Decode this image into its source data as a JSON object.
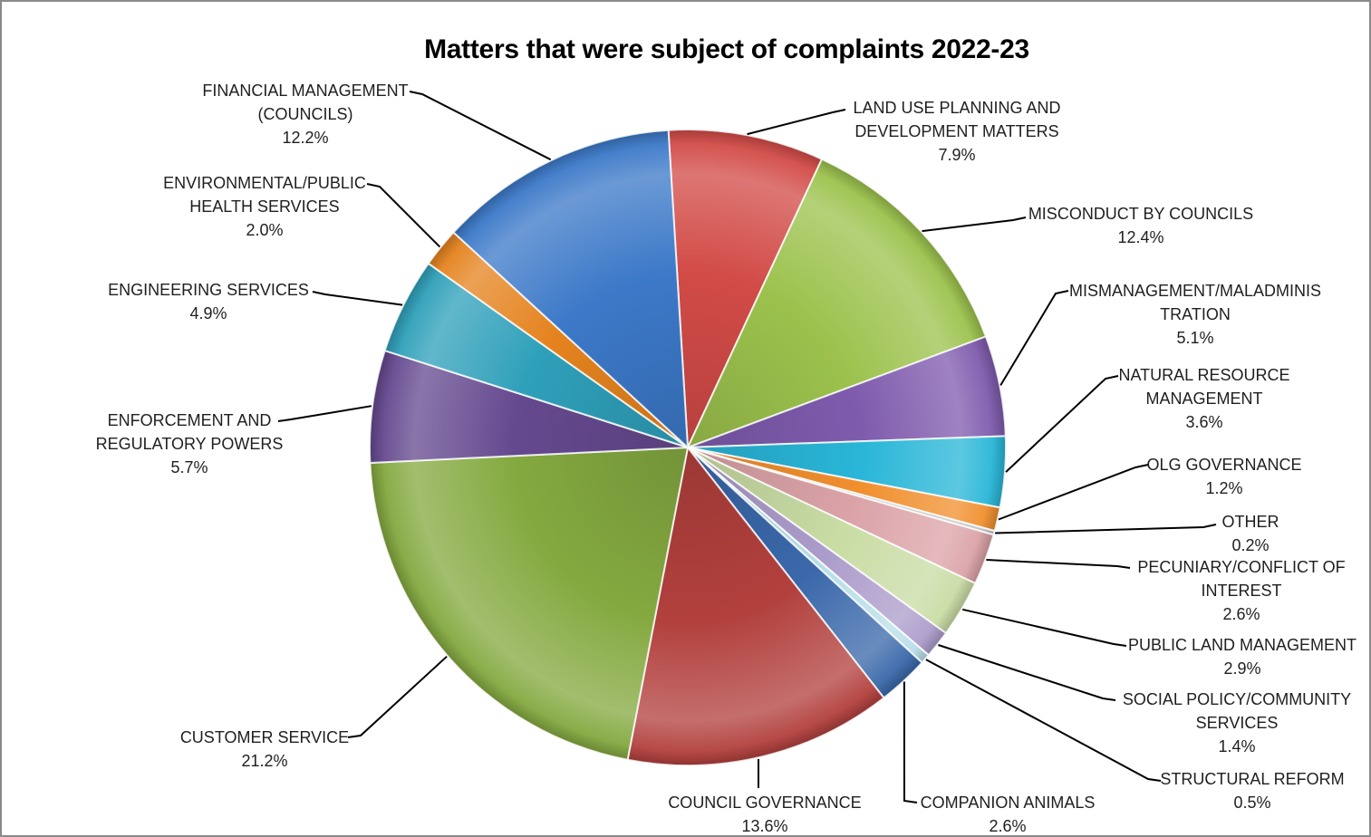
{
  "title": "Matters that were subject of complaints 2022-23",
  "chart_data": {
    "type": "pie",
    "title": "Matters that were subject of complaints 2022-23",
    "unit": "percent",
    "start_at": "top, clockwise",
    "legend": "none",
    "data_labels": "outside with leader lines, category name + percentage",
    "slices": [
      {
        "label": "LAND USE PLANNING AND DEVELOPMENT MATTERS",
        "value": 7.9,
        "pct_label": "7.9%",
        "color": "#D24B47",
        "lines": [
          "LAND USE PLANNING AND",
          "DEVELOPMENT MATTERS"
        ]
      },
      {
        "label": "MISCONDUCT BY COUNCILS",
        "value": 12.4,
        "pct_label": "12.4%",
        "color": "#9CC24D",
        "lines": [
          "MISCONDUCT BY COUNCILS"
        ]
      },
      {
        "label": "MISMANAGEMENT/MALADMINISTRATION",
        "value": 5.1,
        "pct_label": "5.1%",
        "color": "#7F5BAD",
        "lines": [
          "MISMANAGEMENT/MALADMINIS",
          "TRATION"
        ]
      },
      {
        "label": "NATURAL RESOURCE MANAGEMENT",
        "value": 3.6,
        "pct_label": "3.6%",
        "color": "#29B6D8",
        "lines": [
          "NATURAL RESOURCE",
          "MANAGEMENT"
        ]
      },
      {
        "label": "OLG GOVERNANCE",
        "value": 1.2,
        "pct_label": "1.2%",
        "color": "#F08F2E",
        "lines": [
          "OLG GOVERNANCE"
        ]
      },
      {
        "label": "OTHER",
        "value": 0.2,
        "pct_label": "0.2%",
        "color": "#C3C4C6",
        "lines": [
          "OTHER"
        ]
      },
      {
        "label": "PECUNIARY/CONFLICT OF INTEREST",
        "value": 2.6,
        "pct_label": "2.6%",
        "color": "#DBA3A8",
        "lines": [
          "PECUNIARY/CONFLICT OF",
          "INTEREST"
        ]
      },
      {
        "label": "PUBLIC LAND MANAGEMENT",
        "value": 2.9,
        "pct_label": "2.9%",
        "color": "#C9DCA4",
        "lines": [
          "PUBLIC LAND MANAGEMENT"
        ]
      },
      {
        "label": "SOCIAL POLICY/COMMUNITY SERVICES",
        "value": 1.4,
        "pct_label": "1.4%",
        "color": "#AC9CCB",
        "lines": [
          "SOCIAL POLICY/COMMUNITY",
          "SERVICES"
        ]
      },
      {
        "label": "STRUCTURAL REFORM",
        "value": 0.5,
        "pct_label": "0.5%",
        "color": "#B7DEE8",
        "lines": [
          "STRUCTURAL REFORM"
        ]
      },
      {
        "label": "COMPANION ANIMALS",
        "value": 2.6,
        "pct_label": "2.6%",
        "color": "#3A68AA",
        "lines": [
          "COMPANION ANIMALS"
        ]
      },
      {
        "label": "COUNCIL GOVERNANCE",
        "value": 13.6,
        "pct_label": "13.6%",
        "color": "#B2403D",
        "lines": [
          "COUNCIL GOVERNANCE"
        ]
      },
      {
        "label": "CUSTOMER SERVICE",
        "value": 21.2,
        "pct_label": "21.2%",
        "color": "#84A940",
        "lines": [
          "CUSTOMER SERVICE"
        ]
      },
      {
        "label": "ENFORCEMENT AND REGULATORY POWERS",
        "value": 5.7,
        "pct_label": "5.7%",
        "color": "#65498F",
        "lines": [
          "ENFORCEMENT AND",
          "REGULATORY POWERS"
        ]
      },
      {
        "label": "ENGINEERING SERVICES",
        "value": 4.9,
        "pct_label": "4.9%",
        "color": "#2FA0BA",
        "lines": [
          "ENGINEERING SERVICES"
        ]
      },
      {
        "label": "ENVIRONMENTAL/PUBLIC HEALTH SERVICES",
        "value": 2.0,
        "pct_label": "2.0%",
        "color": "#E5831F",
        "lines": [
          "ENVIRONMENTAL/PUBLIC",
          "HEALTH SERVICES"
        ]
      },
      {
        "label": "FINANCIAL MANAGEMENT (COUNCILS)",
        "value": 12.2,
        "pct_label": "12.2%",
        "color": "#3C79C8",
        "lines": [
          "FINANCIAL MANAGEMENT",
          "(COUNCILS)"
        ]
      }
    ]
  }
}
